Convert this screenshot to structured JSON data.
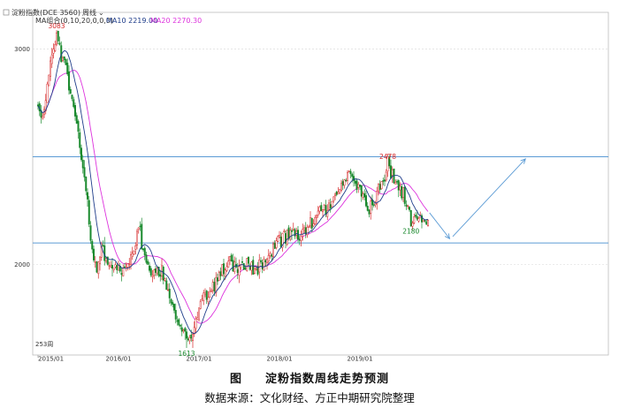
{
  "legend": {
    "symbol": "淀粉指数(DCE 3560)",
    "period": "周线",
    "ma_label": "MA组合(0,10,20,0,0,0)",
    "ma10": "MA10 2219.00",
    "ma20": "MA20 2270.30"
  },
  "caption": {
    "figure": "图",
    "title": "淀粉指数周线走势预测",
    "source": "数据来源：文化财经、方正中期研究院整理"
  },
  "colors": {
    "up": "#d62728",
    "down": "#1a8a2e",
    "ma10": "#1f3d8a",
    "ma20": "#dd33dd",
    "hline": "#5b9bd5",
    "arrow": "#5b9bd5",
    "grid": "#d8d8d8",
    "frame": "#bbbbbb"
  },
  "chart_data": {
    "type": "candlestick",
    "ylim": [
      1580,
      3170
    ],
    "y_ticks": [
      2000,
      3000
    ],
    "x_ticks": [
      {
        "label": "2015/01",
        "x": 0
      },
      {
        "label": "2016/01",
        "x": 52
      },
      {
        "label": "2017/01",
        "x": 104
      },
      {
        "label": "2018/01",
        "x": 156
      },
      {
        "label": "2019/01",
        "x": 208
      }
    ],
    "bar_count_label": "253周",
    "horizontal_lines": [
      2500,
      2100
    ],
    "annotations": [
      {
        "text": "3083",
        "x": 12,
        "value": 3083,
        "color": "up",
        "pos": "above"
      },
      {
        "text": "1613",
        "x": 96,
        "value": 1613,
        "color": "down",
        "pos": "below"
      },
      {
        "text": "2478",
        "x": 226,
        "value": 2478,
        "color": "up",
        "pos": "above"
      },
      {
        "text": "2180",
        "x": 241,
        "value": 2180,
        "color": "down",
        "pos": "below"
      }
    ],
    "forecast_arrows": [
      {
        "from": [
          253,
          2240
        ],
        "to": [
          266,
          2120
        ]
      },
      {
        "from": [
          268,
          2130
        ],
        "to": [
          315,
          2490
        ]
      }
    ],
    "anchors": [
      [
        0,
        2740
      ],
      [
        3,
        2680
      ],
      [
        6,
        2850
      ],
      [
        10,
        3000
      ],
      [
        12,
        3060
      ],
      [
        15,
        2970
      ],
      [
        18,
        2920
      ],
      [
        21,
        2800
      ],
      [
        24,
        2700
      ],
      [
        27,
        2520
      ],
      [
        30,
        2400
      ],
      [
        33,
        2200
      ],
      [
        36,
        2000
      ],
      [
        38,
        1960
      ],
      [
        41,
        2080
      ],
      [
        44,
        2030
      ],
      [
        47,
        1980
      ],
      [
        50,
        2000
      ],
      [
        53,
        1970
      ],
      [
        56,
        1960
      ],
      [
        59,
        2000
      ],
      [
        62,
        2060
      ],
      [
        65,
        2180
      ],
      [
        68,
        2080
      ],
      [
        71,
        2000
      ],
      [
        74,
        1950
      ],
      [
        77,
        1960
      ],
      [
        80,
        1950
      ],
      [
        83,
        1900
      ],
      [
        86,
        1820
      ],
      [
        90,
        1740
      ],
      [
        93,
        1700
      ],
      [
        96,
        1650
      ],
      [
        99,
        1690
      ],
      [
        102,
        1760
      ],
      [
        106,
        1840
      ],
      [
        110,
        1870
      ],
      [
        114,
        1900
      ],
      [
        118,
        1960
      ],
      [
        122,
        2020
      ],
      [
        126,
        1990
      ],
      [
        130,
        1980
      ],
      [
        134,
        1990
      ],
      [
        138,
        2000
      ],
      [
        142,
        1980
      ],
      [
        146,
        2010
      ],
      [
        150,
        2050
      ],
      [
        154,
        2110
      ],
      [
        158,
        2130
      ],
      [
        162,
        2150
      ],
      [
        166,
        2130
      ],
      [
        170,
        2140
      ],
      [
        174,
        2170
      ],
      [
        178,
        2200
      ],
      [
        182,
        2240
      ],
      [
        186,
        2260
      ],
      [
        190,
        2300
      ],
      [
        194,
        2350
      ],
      [
        198,
        2410
      ],
      [
        202,
        2420
      ],
      [
        206,
        2370
      ],
      [
        210,
        2320
      ],
      [
        214,
        2250
      ],
      [
        218,
        2300
      ],
      [
        222,
        2380
      ],
      [
        226,
        2460
      ],
      [
        229,
        2420
      ],
      [
        232,
        2380
      ],
      [
        235,
        2330
      ],
      [
        238,
        2280
      ],
      [
        241,
        2200
      ],
      [
        244,
        2210
      ],
      [
        247,
        2225
      ],
      [
        250,
        2220
      ],
      [
        252,
        2210
      ]
    ]
  }
}
